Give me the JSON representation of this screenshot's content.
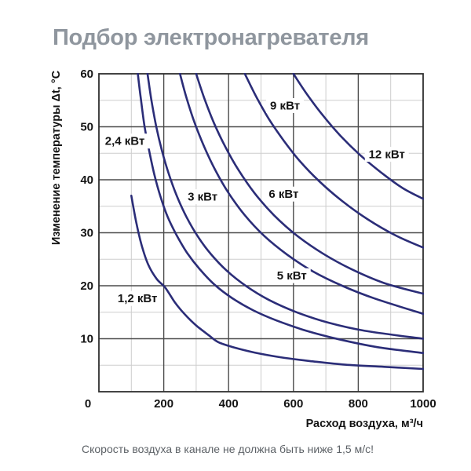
{
  "title": "Подбор электронагревателя",
  "caption": "Скорость воздуха в канале не должна быть ниже 1,5 м/с!",
  "chart_data": {
    "type": "line",
    "title": "Подбор электронагревателя",
    "xlabel": "Расход воздуха, м³/ч",
    "ylabel": "Изменение температуры Δt, °C",
    "xlim": [
      0,
      1000
    ],
    "ylim": [
      0,
      60
    ],
    "x_major_ticks": [
      0,
      200,
      400,
      600,
      800,
      1000
    ],
    "x_minor_step": 100,
    "y_major_ticks": [
      10,
      20,
      30,
      40,
      50,
      60
    ],
    "y_minor_step": 5,
    "grid": true,
    "legend_position": "inline-labels",
    "colors": {
      "curve": "#2b2d78",
      "grid_major": "#4b4b4b",
      "grid_minor": "#cdcdcd",
      "border": "#2f2f2f",
      "text": "#141414",
      "title": "#8f969e",
      "caption": "#5d6267"
    },
    "series": [
      {
        "name": "1,2 кВт",
        "power_kw": 1.2,
        "label_at": {
          "x": 119,
          "y": 17.6
        },
        "points": [
          [
            100,
            37
          ],
          [
            115,
            32
          ],
          [
            132,
            27.6
          ],
          [
            152,
            24
          ],
          [
            178,
            21.3
          ],
          [
            205,
            19.6
          ],
          [
            235,
            16.8
          ],
          [
            265,
            14.6
          ],
          [
            300,
            12.5
          ],
          [
            340,
            10.6
          ],
          [
            370,
            9.3
          ],
          [
            420,
            8.3
          ],
          [
            480,
            7.4
          ],
          [
            560,
            6.5
          ],
          [
            650,
            5.8
          ],
          [
            760,
            5.1
          ],
          [
            880,
            4.7
          ],
          [
            1000,
            4.3
          ]
        ]
      },
      {
        "name": "2,4 кВт",
        "power_kw": 2.4,
        "label_at": {
          "x": 80,
          "y": 47.3
        },
        "points": [
          [
            120,
            60
          ],
          [
            130,
            55
          ],
          [
            141,
            50
          ],
          [
            155,
            45.5
          ],
          [
            171,
            41
          ],
          [
            190,
            36.8
          ],
          [
            212,
            33
          ],
          [
            240,
            29.5
          ],
          [
            272,
            26.2
          ],
          [
            310,
            23.2
          ],
          [
            355,
            20.3
          ],
          [
            410,
            17.7
          ],
          [
            475,
            15.4
          ],
          [
            550,
            13.4
          ],
          [
            640,
            11.5
          ],
          [
            740,
            9.9
          ],
          [
            860,
            8.4
          ],
          [
            1000,
            7.3
          ]
        ]
      },
      {
        "name": "3 кВт",
        "power_kw": 3,
        "label_at": {
          "x": 320,
          "y": 36.8
        },
        "points": [
          [
            150,
            60
          ],
          [
            162,
            55
          ],
          [
            177,
            50
          ],
          [
            194,
            45.6
          ],
          [
            215,
            41.2
          ],
          [
            240,
            37
          ],
          [
            270,
            33
          ],
          [
            305,
            29.3
          ],
          [
            345,
            26
          ],
          [
            395,
            22.8
          ],
          [
            455,
            19.9
          ],
          [
            525,
            17.3
          ],
          [
            610,
            15
          ],
          [
            710,
            13
          ],
          [
            820,
            11.5
          ],
          [
            1000,
            10
          ]
        ]
      },
      {
        "name": "5 кВт",
        "power_kw": 5,
        "label_at": {
          "x": 595,
          "y": 21.9
        },
        "points": [
          [
            250,
            60
          ],
          [
            270,
            55.5
          ],
          [
            295,
            50.8
          ],
          [
            325,
            46.2
          ],
          [
            360,
            41.7
          ],
          [
            400,
            37.5
          ],
          [
            450,
            33.3
          ],
          [
            510,
            29.4
          ],
          [
            580,
            25.9
          ],
          [
            660,
            22.7
          ],
          [
            750,
            20
          ],
          [
            850,
            17.6
          ],
          [
            1000,
            14.7
          ]
        ]
      },
      {
        "name": "6 кВт",
        "power_kw": 6,
        "label_at": {
          "x": 570,
          "y": 37.3
        },
        "points": [
          [
            300,
            60
          ],
          [
            325,
            55.4
          ],
          [
            355,
            50.7
          ],
          [
            390,
            46.2
          ],
          [
            430,
            41.9
          ],
          [
            480,
            37.5
          ],
          [
            540,
            33.3
          ],
          [
            610,
            29.5
          ],
          [
            690,
            26.1
          ],
          [
            780,
            23.1
          ],
          [
            880,
            20.5
          ],
          [
            1000,
            18.5
          ]
        ]
      },
      {
        "name": "9 кВт",
        "power_kw": 9,
        "label_at": {
          "x": 574,
          "y": 54
        },
        "points": [
          [
            450,
            60
          ],
          [
            485,
            55.7
          ],
          [
            525,
            51.4
          ],
          [
            570,
            47.4
          ],
          [
            620,
            43.5
          ],
          [
            680,
            39.7
          ],
          [
            750,
            36
          ],
          [
            830,
            32.5
          ],
          [
            915,
            29.5
          ],
          [
            1000,
            27.2
          ]
        ]
      },
      {
        "name": "12 кВт",
        "power_kw": 12,
        "label_at": {
          "x": 888,
          "y": 44.8
        },
        "points": [
          [
            600,
            60
          ],
          [
            640,
            56.3
          ],
          [
            690,
            52.2
          ],
          [
            745,
            48.3
          ],
          [
            805,
            44.7
          ],
          [
            870,
            41.4
          ],
          [
            935,
            38.5
          ],
          [
            1000,
            36.4
          ]
        ]
      }
    ]
  }
}
